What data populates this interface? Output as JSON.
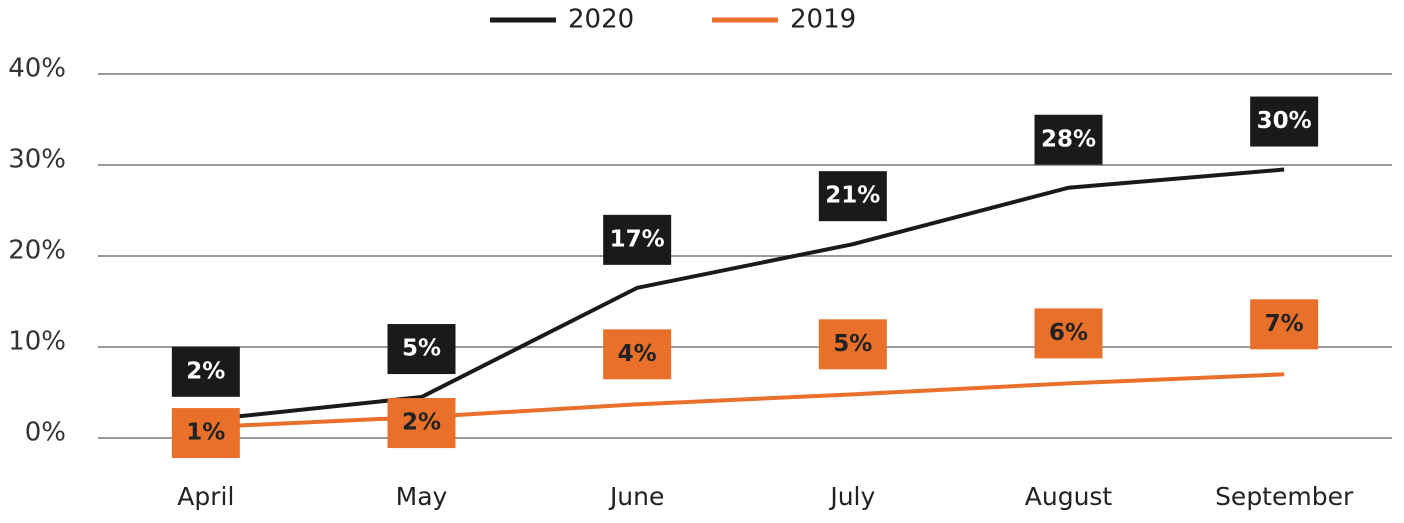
{
  "chart_data": {
    "type": "line",
    "categories": [
      "April",
      "May",
      "June",
      "July",
      "August",
      "September"
    ],
    "series": [
      {
        "name": "2020",
        "color": "#1a1a1a",
        "values": [
          2,
          4.5,
          16.5,
          21.3,
          27.5,
          29.5
        ],
        "value_labels": [
          "2%",
          "5%",
          "17%",
          "21%",
          "28%",
          "30%"
        ]
      },
      {
        "name": "2019",
        "color": "#e8702a",
        "values": [
          1.2,
          2.3,
          3.7,
          4.8,
          6,
          7
        ],
        "value_labels": [
          "1%",
          "2%",
          "4%",
          "5%",
          "6%",
          "7%"
        ]
      }
    ],
    "ylim": [
      0,
      40
    ],
    "yticks": [
      {
        "value": 0,
        "label": "0%"
      },
      {
        "value": 10,
        "label": "10%"
      },
      {
        "value": 20,
        "label": "20%"
      },
      {
        "value": 30,
        "label": "30%"
      },
      {
        "value": 40,
        "label": "40%"
      }
    ],
    "grid": true,
    "legend": "top"
  }
}
